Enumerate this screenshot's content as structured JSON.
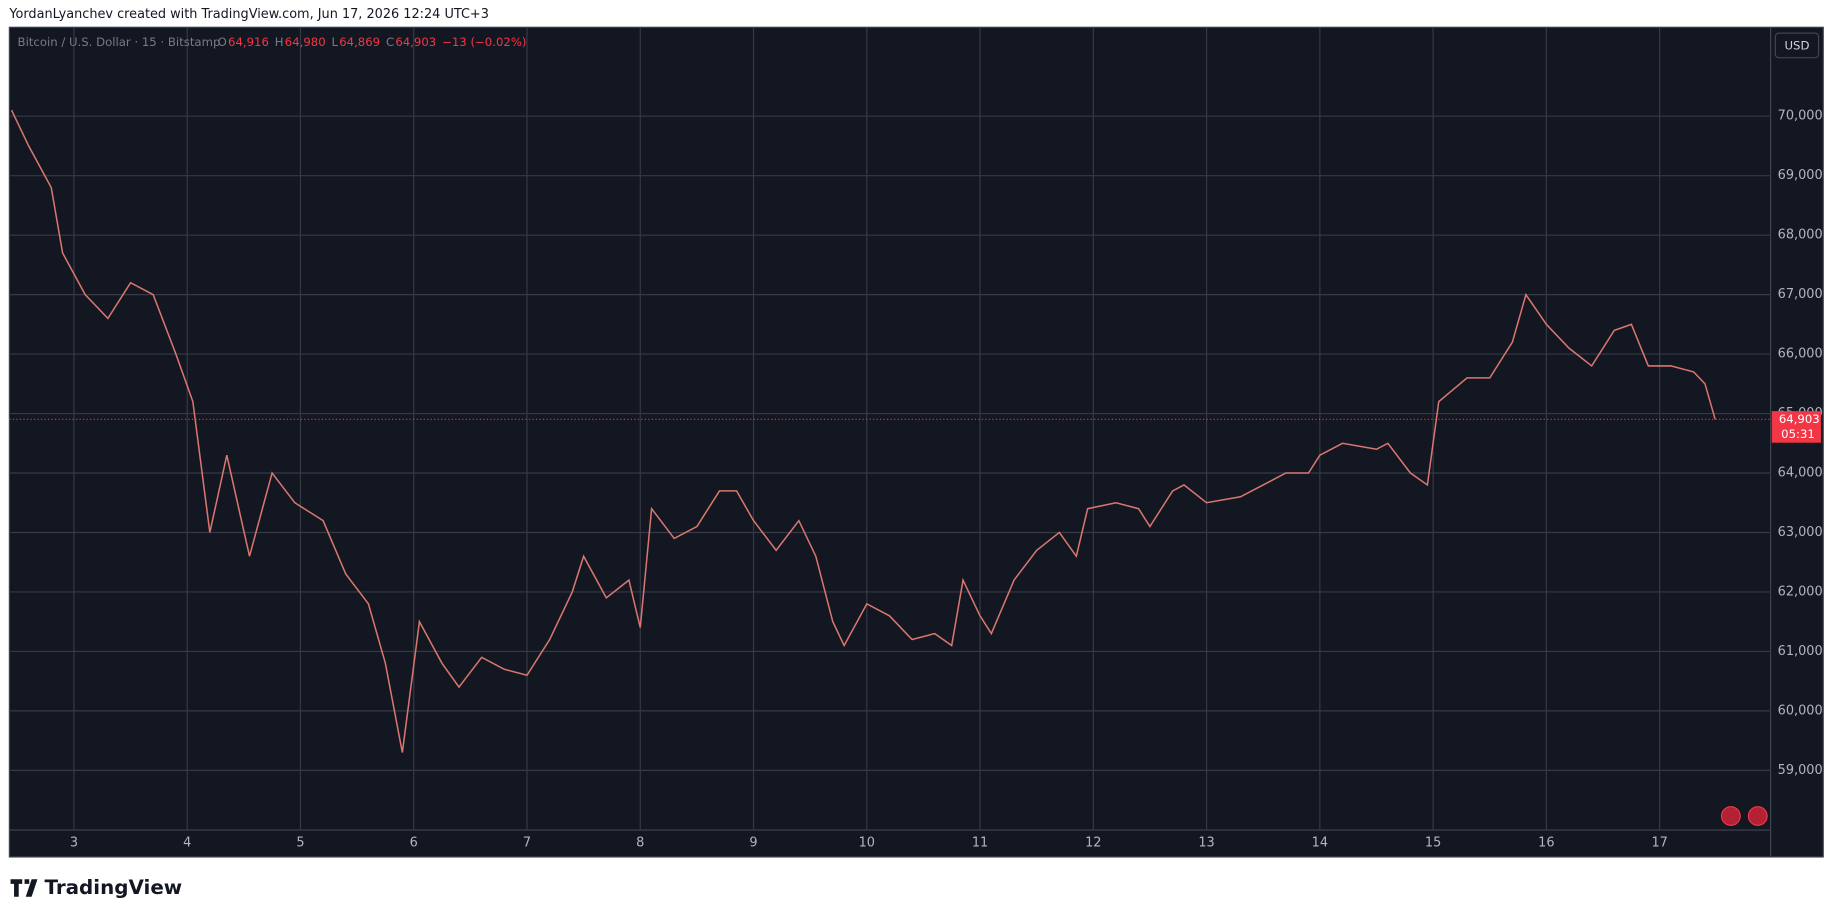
{
  "header": {
    "attribution": "YordanLyanchev created with TradingView.com, Jun 17, 2026 12:24 UTC+3"
  },
  "legend": {
    "symbol": "Bitcoin / U.S. Dollar · 15 · Bitstamp",
    "ohlc": [
      {
        "label": "O",
        "value": "64,916"
      },
      {
        "label": "H",
        "value": "64,980"
      },
      {
        "label": "L",
        "value": "64,869"
      },
      {
        "label": "C",
        "value": "64,903"
      }
    ],
    "change": "−13 (−0.02%)"
  },
  "currency_button": "USD",
  "footer": {
    "brand": "TradingView"
  },
  "chart_data": {
    "type": "line",
    "x": [
      2.45,
      2.6,
      2.8,
      2.9,
      3.1,
      3.3,
      3.5,
      3.7,
      3.9,
      4.05,
      4.2,
      4.35,
      4.55,
      4.75,
      4.95,
      5.2,
      5.4,
      5.6,
      5.75,
      5.9,
      6.05,
      6.25,
      6.4,
      6.6,
      6.8,
      7.0,
      7.2,
      7.4,
      7.5,
      7.7,
      7.9,
      8.0,
      8.1,
      8.3,
      8.5,
      8.7,
      8.85,
      9.0,
      9.2,
      9.4,
      9.55,
      9.7,
      9.8,
      10.0,
      10.2,
      10.4,
      10.6,
      10.75,
      10.85,
      11.0,
      11.1,
      11.3,
      11.5,
      11.7,
      11.85,
      11.95,
      12.2,
      12.4,
      12.5,
      12.7,
      12.8,
      13.0,
      13.3,
      13.5,
      13.7,
      13.9,
      14.0,
      14.2,
      14.5,
      14.6,
      14.8,
      14.95,
      15.05,
      15.3,
      15.5,
      15.7,
      15.82,
      16.0,
      16.2,
      16.4,
      16.6,
      16.75,
      16.9,
      17.1,
      17.3,
      17.4,
      17.49
    ],
    "series": [
      {
        "name": "Bitcoin / U.S. Dollar",
        "color": "#d9776e",
        "values": [
          70100,
          69500,
          68800,
          67700,
          67000,
          66600,
          67200,
          67000,
          66000,
          65200,
          63000,
          64300,
          62600,
          64000,
          63500,
          63200,
          62300,
          61800,
          60800,
          59300,
          61500,
          60800,
          60400,
          60900,
          60700,
          60600,
          61200,
          62000,
          62600,
          61900,
          62200,
          61400,
          63400,
          62900,
          63100,
          63700,
          63700,
          63200,
          62700,
          63200,
          62600,
          61500,
          61100,
          61800,
          61600,
          61200,
          61300,
          61100,
          62200,
          61600,
          61300,
          62200,
          62700,
          63000,
          62600,
          63400,
          63500,
          63400,
          63100,
          63700,
          63800,
          63500,
          63600,
          63800,
          64000,
          64000,
          64300,
          64500,
          64400,
          64500,
          64000,
          63800,
          65200,
          65600,
          65600,
          66200,
          67000,
          66500,
          66100,
          65800,
          66400,
          66500,
          65800,
          65800,
          65700,
          65500,
          64903
        ]
      }
    ],
    "last_price": {
      "value": 64903,
      "label": "64,903",
      "countdown": "05:31",
      "color": "#f23645"
    },
    "xlim": [
      2.43,
      17.98
    ],
    "xticks": [
      3,
      4,
      5,
      6,
      7,
      8,
      9,
      10,
      11,
      12,
      13,
      14,
      15,
      16,
      17
    ],
    "ylim": [
      57996,
      71496
    ],
    "yticks": [
      {
        "value": 59000,
        "label": "59,000"
      },
      {
        "value": 60000,
        "label": "60,000"
      },
      {
        "value": 61000,
        "label": "61,000"
      },
      {
        "value": 62000,
        "label": "62,000"
      },
      {
        "value": 63000,
        "label": "63,000"
      },
      {
        "value": 64000,
        "label": "64,000"
      },
      {
        "value": 65000,
        "label": "65,000"
      },
      {
        "value": 66000,
        "label": "66,000"
      },
      {
        "value": 67000,
        "label": "67,000"
      },
      {
        "value": 68000,
        "label": "68,000"
      },
      {
        "value": 69000,
        "label": "69,000"
      },
      {
        "value": 70000,
        "label": "70,000"
      }
    ],
    "grid": true
  }
}
